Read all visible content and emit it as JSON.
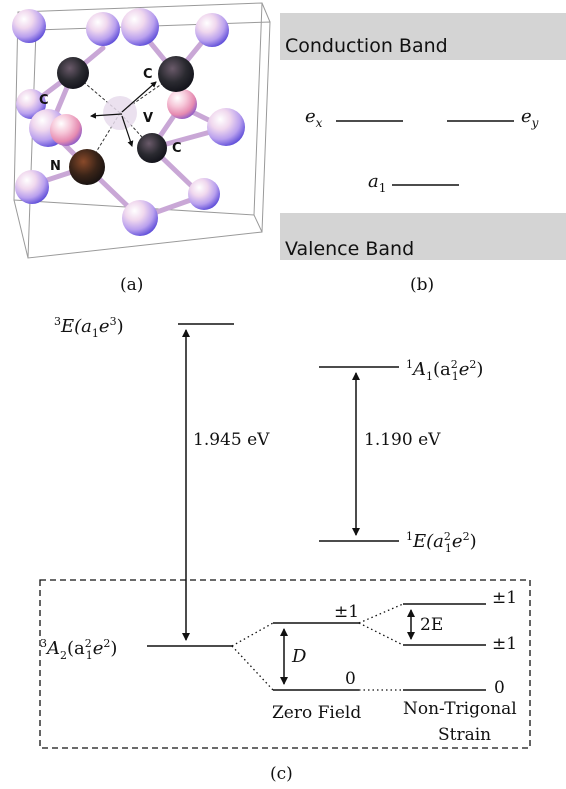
{
  "panel_a": {
    "caption": "(a)",
    "atom_labels": {
      "c_top_left": "C",
      "c_top_right": "C",
      "c_bottom_right": "C",
      "n": "N",
      "v": "V"
    }
  },
  "panel_b": {
    "caption": "(b)",
    "conduction_band": "Conduction Band",
    "valence_band": "Valence Band",
    "ex": "e",
    "ex_sub": "x",
    "ey": "e",
    "ey_sub": "y",
    "a1": "a",
    "a1_sub": "1"
  },
  "panel_c": {
    "caption": "(c)",
    "e3_main": "E(a",
    "e3_sub": "1",
    "e3_rest": "e",
    "e3_exp": "3",
    "e3_end": ")",
    "e3_sup": "3",
    "a1_main": "A",
    "a1_sub1": "1",
    "a1_open": "(a",
    "a1_sub2": "1",
    "a1_sup2": "2",
    "a1_e": "e",
    "a1_sup3": "2",
    "a1_end": ")",
    "a1_sup": "1",
    "e1_main": "E(a",
    "e1_sub": "1",
    "e1_sup2": "2",
    "e1_e": "e",
    "e1_sup3": "2",
    "e1_end": ")",
    "e1_sup": "1",
    "a2_main": "A",
    "a2_sub1": "2",
    "a2_open": "(a",
    "a2_sub2": "1",
    "a2_sup2": "2",
    "a2_e": "e",
    "a2_sup3": "2",
    "a2_end": ")",
    "a2_sup": "3",
    "gap_triplet": "1.945 eV",
    "gap_singlet": "1.190 eV",
    "d_label": "D",
    "two_e_label": "2E",
    "pm1_zero_field": "±1",
    "zero_zero_field": "0",
    "pm1_upper_strain": "±1",
    "pm1_lower_strain": "±1",
    "zero_strain": "0",
    "zero_field_label": "Zero Field",
    "strain_label_1": "Non-Trigonal",
    "strain_label_2": "Strain"
  },
  "colors": {
    "band_fill": "#d4d4d4",
    "line": "#111111"
  }
}
